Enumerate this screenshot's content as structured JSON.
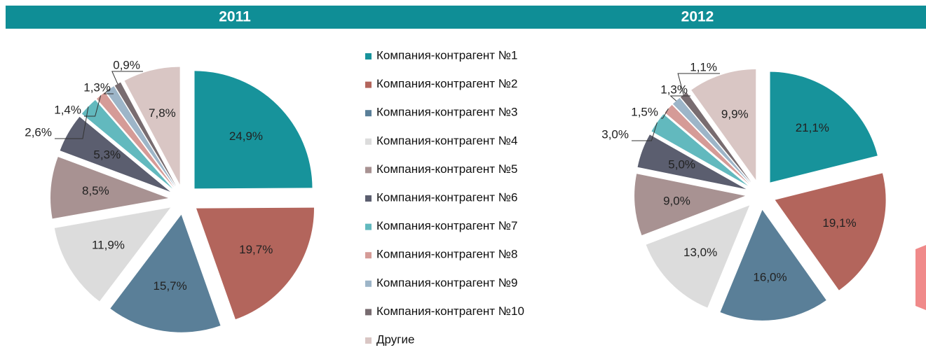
{
  "chart_data": [
    {
      "type": "pie",
      "title": "2011",
      "categories": [
        "Компания-контрагент  №1",
        "Компания-контрагент  №2",
        "Компания-контрагент  №3",
        "Компания-контрагент  №4",
        "Компания-контрагент  №5",
        "Компания-контрагент  №6",
        "Компания-контрагент  №7",
        "Компания-контрагент  №8",
        "Компания-контрагент  №9",
        "Компания-контрагент  №10",
        "Другие"
      ],
      "colors": [
        "#17939b",
        "#b3655c",
        "#5a7f98",
        "#dcdcdc",
        "#a89292",
        "#5b5e6f",
        "#62b9be",
        "#d59b97",
        "#9db5c8",
        "#786c70",
        "#d9c6c4"
      ],
      "values": [
        24.9,
        19.7,
        15.7,
        11.9,
        8.5,
        5.3,
        2.6,
        1.4,
        1.3,
        0.9,
        7.8
      ],
      "value_labels": [
        "24,9%",
        "19,7%",
        "15,7%",
        "11,9%",
        "8,5%",
        "5,3%",
        "2,6%",
        "1,4%",
        "1,3%",
        "0,9%",
        "7,8%"
      ]
    },
    {
      "type": "pie",
      "title": "2012",
      "values": [
        21.1,
        19.1,
        16.0,
        13.0,
        9.0,
        5.0,
        3.0,
        1.5,
        1.3,
        1.1,
        9.9
      ],
      "value_labels": [
        "21,1%",
        "19,1%",
        "16,0%",
        "13,0%",
        "9,0%",
        "5,0%",
        "3,0%",
        "1,5%",
        "1,3%",
        "1,1%",
        "9,9%"
      ]
    }
  ]
}
